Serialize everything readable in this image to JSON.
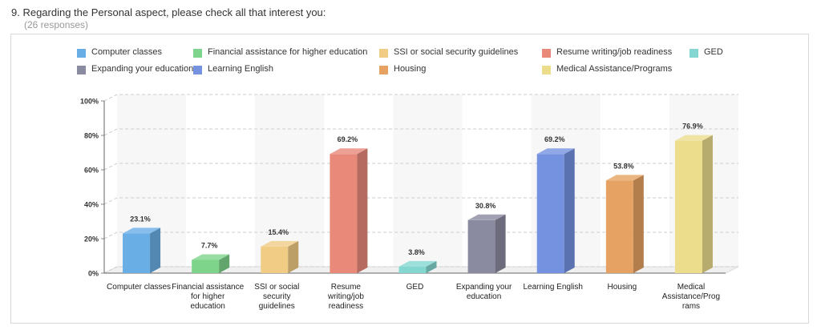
{
  "question": {
    "title": "9. Regarding the Personal aspect, please check all that interest you:",
    "responses": "(26 responses)"
  },
  "chart_data": {
    "type": "bar",
    "categories": [
      "Computer classes",
      "Financial assistance for higher education",
      "SSI or social security guidelines",
      "Resume writing/job readiness",
      "GED",
      "Expanding your education",
      "Learning English",
      "Housing",
      "Medical Assistance/Programs"
    ],
    "tick_lines": [
      [
        "Computer classes"
      ],
      [
        "Financial assistance",
        "for higher",
        "education"
      ],
      [
        "SSI or social",
        "security",
        "guidelines"
      ],
      [
        "Resume",
        "writing/job",
        "readiness"
      ],
      [
        "GED"
      ],
      [
        "Expanding your",
        "education"
      ],
      [
        "Learning English"
      ],
      [
        "Housing"
      ],
      [
        "Medical",
        "Assistance/Prog",
        "rams"
      ]
    ],
    "values": [
      23.1,
      7.7,
      15.4,
      69.2,
      3.8,
      30.8,
      69.2,
      53.8,
      76.9
    ],
    "data_labels": [
      "23.1%",
      "7.7%",
      "15.4%",
      "69.2%",
      "3.8%",
      "30.8%",
      "69.2%",
      "53.8%",
      "76.9%"
    ],
    "colors": [
      "#6aaee6",
      "#7ed48a",
      "#f0cc84",
      "#e8897a",
      "#84d7d1",
      "#8a8aa0",
      "#7492e0",
      "#e6a262",
      "#ebdd8c"
    ],
    "ylim": [
      0,
      100
    ],
    "yticks": [
      "0%",
      "20%",
      "40%",
      "60%",
      "80%",
      "100%"
    ],
    "grid": true,
    "legend_position": "top"
  }
}
